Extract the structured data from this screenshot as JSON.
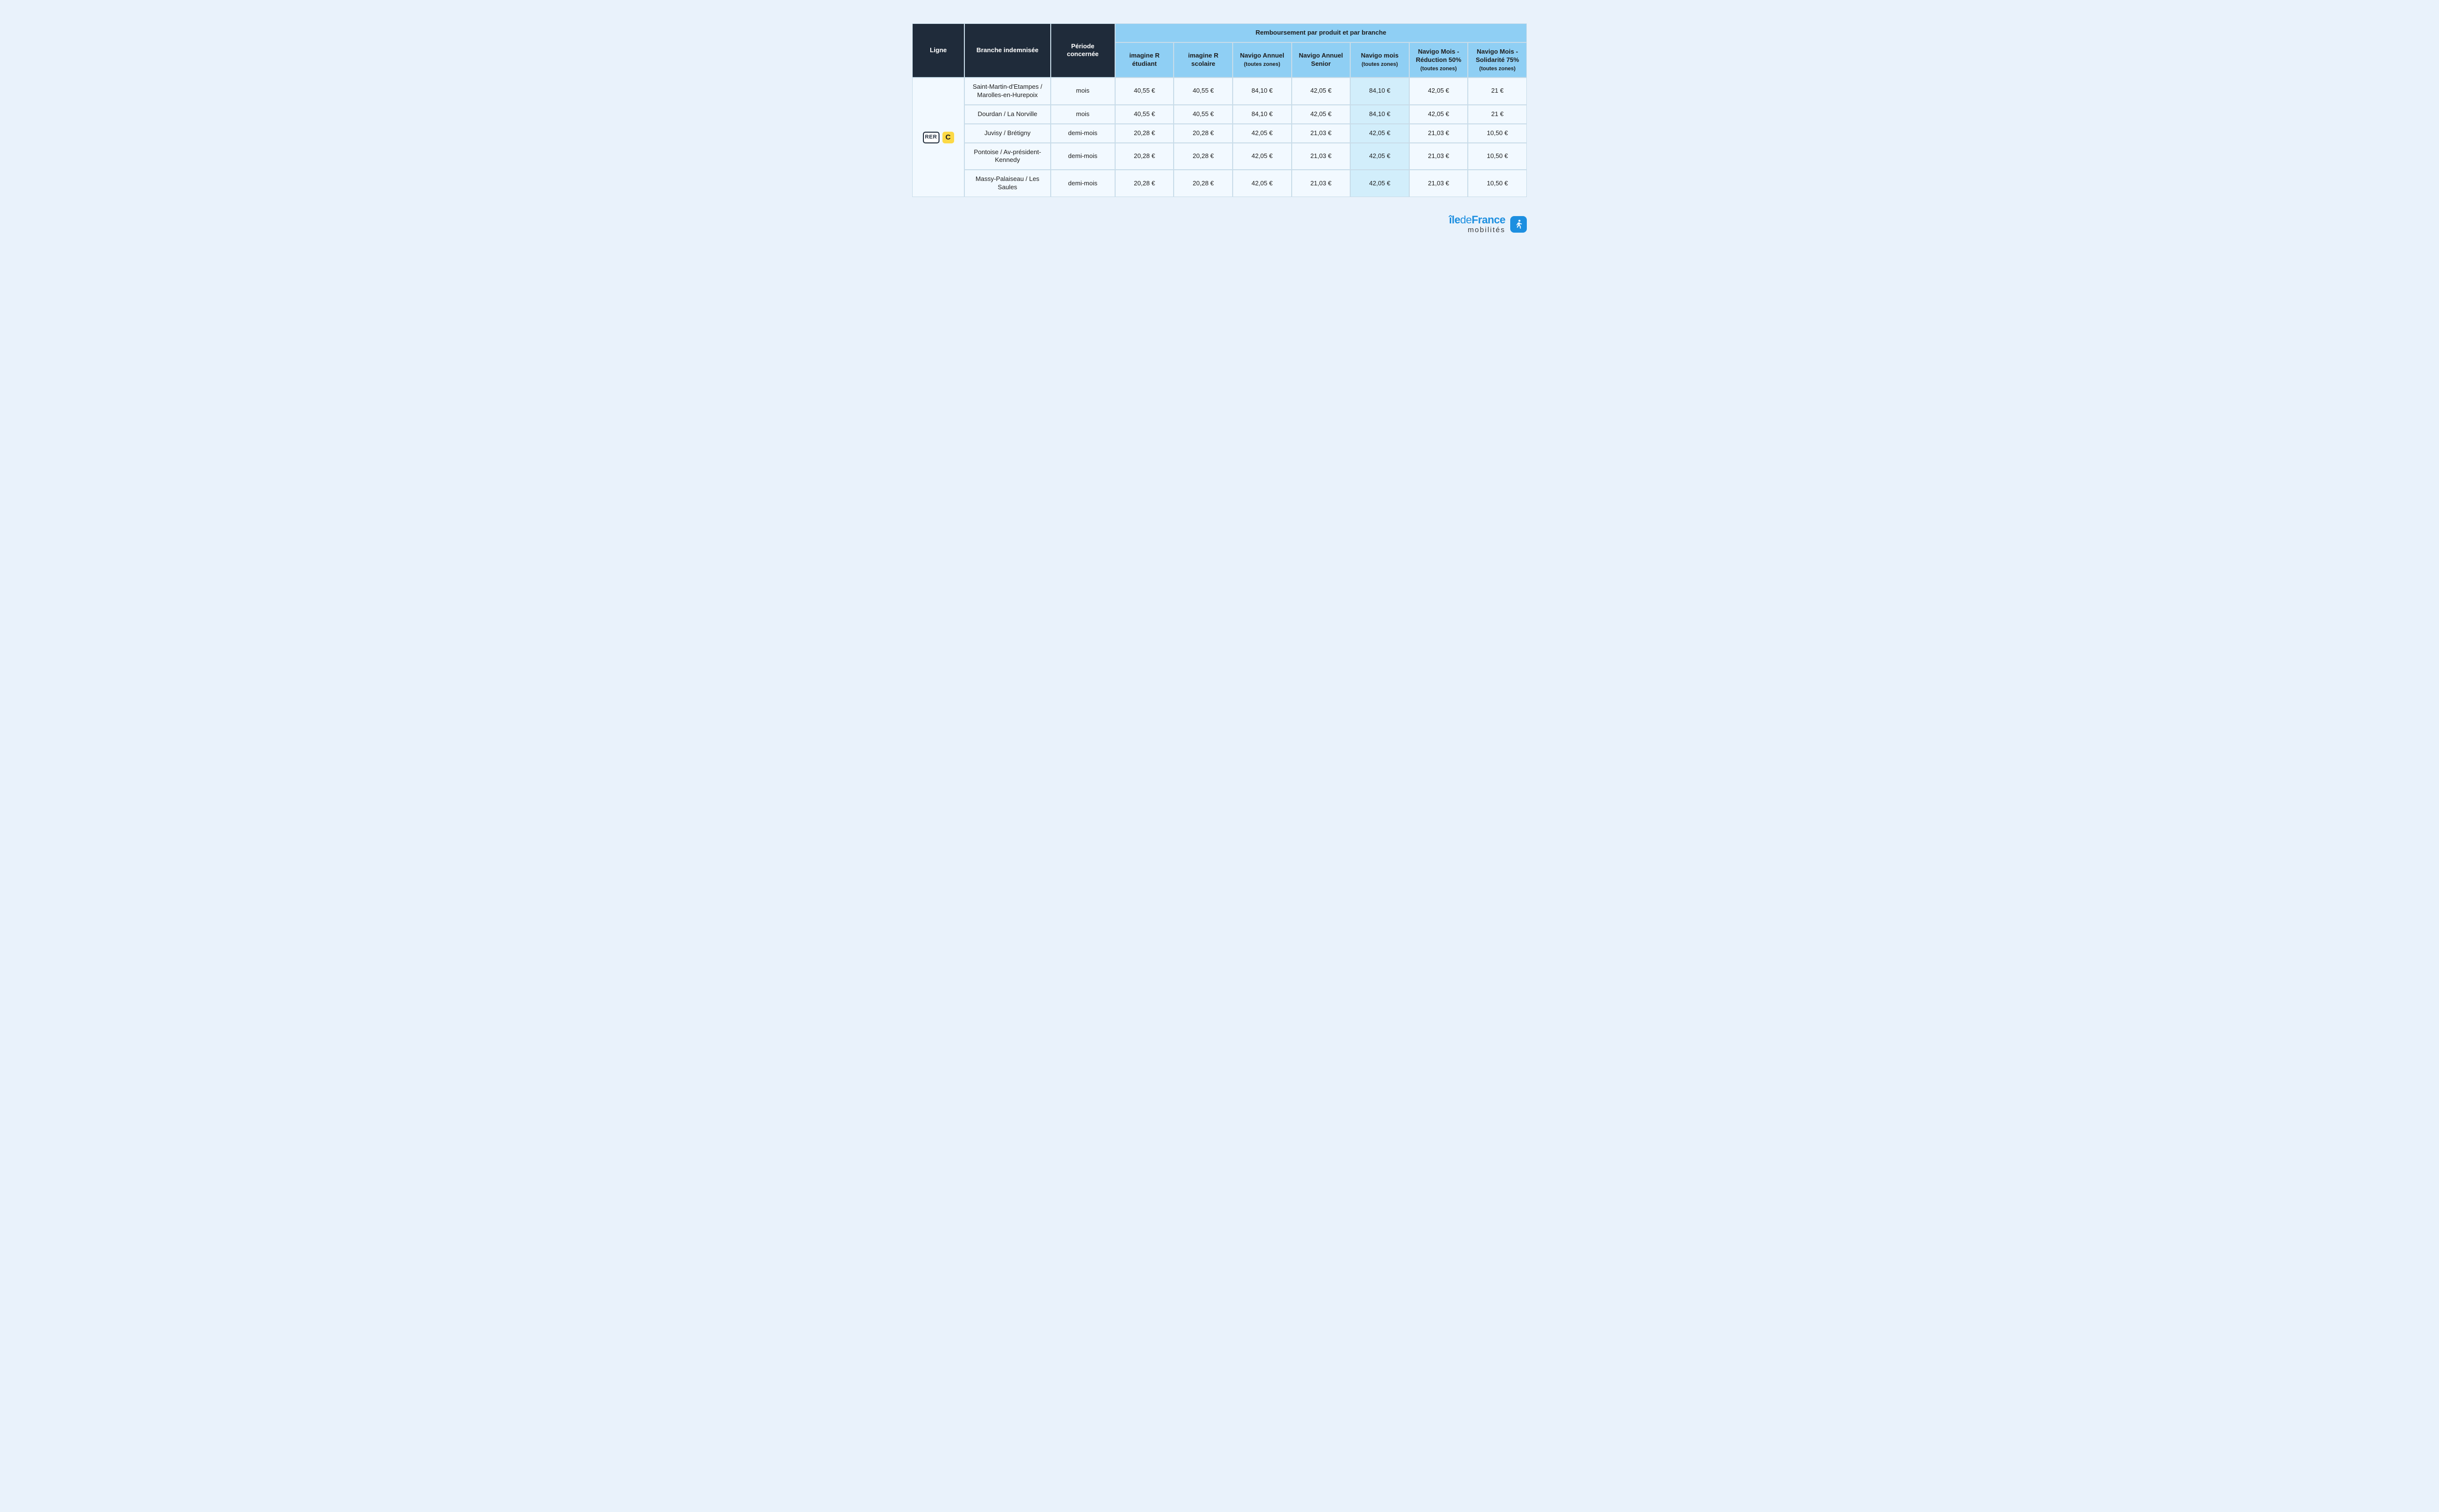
{
  "colors": {
    "page_bg": "#e9f2fb",
    "dark_header_bg": "#1f2b3a",
    "dark_header_text": "#ffffff",
    "blue_header_bg": "#8fcff4",
    "cell_bg": "#f2f9ff",
    "cell_hl_bg": "#d2eefb",
    "border": "#c8dce9",
    "brand_blue": "#1d8fe0",
    "line_c_bg": "#fcd946"
  },
  "headers": {
    "ligne": "Ligne",
    "branche": "Branche indemnisée",
    "periode": "Période concernée",
    "group": "Remboursement par produit et par branche",
    "products": [
      {
        "label": "imagine R étudiant",
        "sub": ""
      },
      {
        "label": "imagine R scolaire",
        "sub": ""
      },
      {
        "label": "Navigo Annuel",
        "sub": "(toutes zones)"
      },
      {
        "label": "Navigo Annuel Senior",
        "sub": ""
      },
      {
        "label": "Navigo mois",
        "sub": "(toutes zones)"
      },
      {
        "label": "Navigo Mois - Réduction 50%",
        "sub": "(toutes zones)"
      },
      {
        "label": "Navigo Mois - Solidarité 75%",
        "sub": "(toutes zones)"
      }
    ]
  },
  "line_badge": {
    "rer_label": "RER",
    "line_letter": "C"
  },
  "rows": [
    {
      "branche": "Saint-Martin-d'Etampes / Marolles-en-Hurepoix",
      "periode": "mois",
      "values": [
        "40,55 €",
        "40,55 €",
        "84,10 €",
        "42,05 €",
        "84,10 €",
        "42,05 €",
        "21 €"
      ]
    },
    {
      "branche": "Dourdan / La Norville",
      "periode": "mois",
      "values": [
        "40,55 €",
        "40,55 €",
        "84,10 €",
        "42,05 €",
        "84,10 €",
        "42,05 €",
        "21 €"
      ]
    },
    {
      "branche": "Juvisy / Brétigny",
      "periode": "demi-mois",
      "values": [
        "20,28 €",
        "20,28 €",
        "42,05 €",
        "21,03 €",
        "42,05 €",
        "21,03 €",
        "10,50 €"
      ]
    },
    {
      "branche": "Pontoise / Av-président-Kennedy",
      "periode": "demi-mois",
      "values": [
        "20,28 €",
        "20,28 €",
        "42,05 €",
        "21,03 €",
        "42,05 €",
        "21,03 €",
        "10,50 €"
      ]
    },
    {
      "branche": "Massy-Palaiseau / Les Saules",
      "periode": "demi-mois",
      "values": [
        "20,28 €",
        "20,28 €",
        "42,05 €",
        "21,03 €",
        "42,05 €",
        "21,03 €",
        "10,50 €"
      ]
    }
  ],
  "highlight_col_index": 4,
  "footer": {
    "brand_top_html": "îledeFrance",
    "brand_bottom": "mobilités"
  }
}
